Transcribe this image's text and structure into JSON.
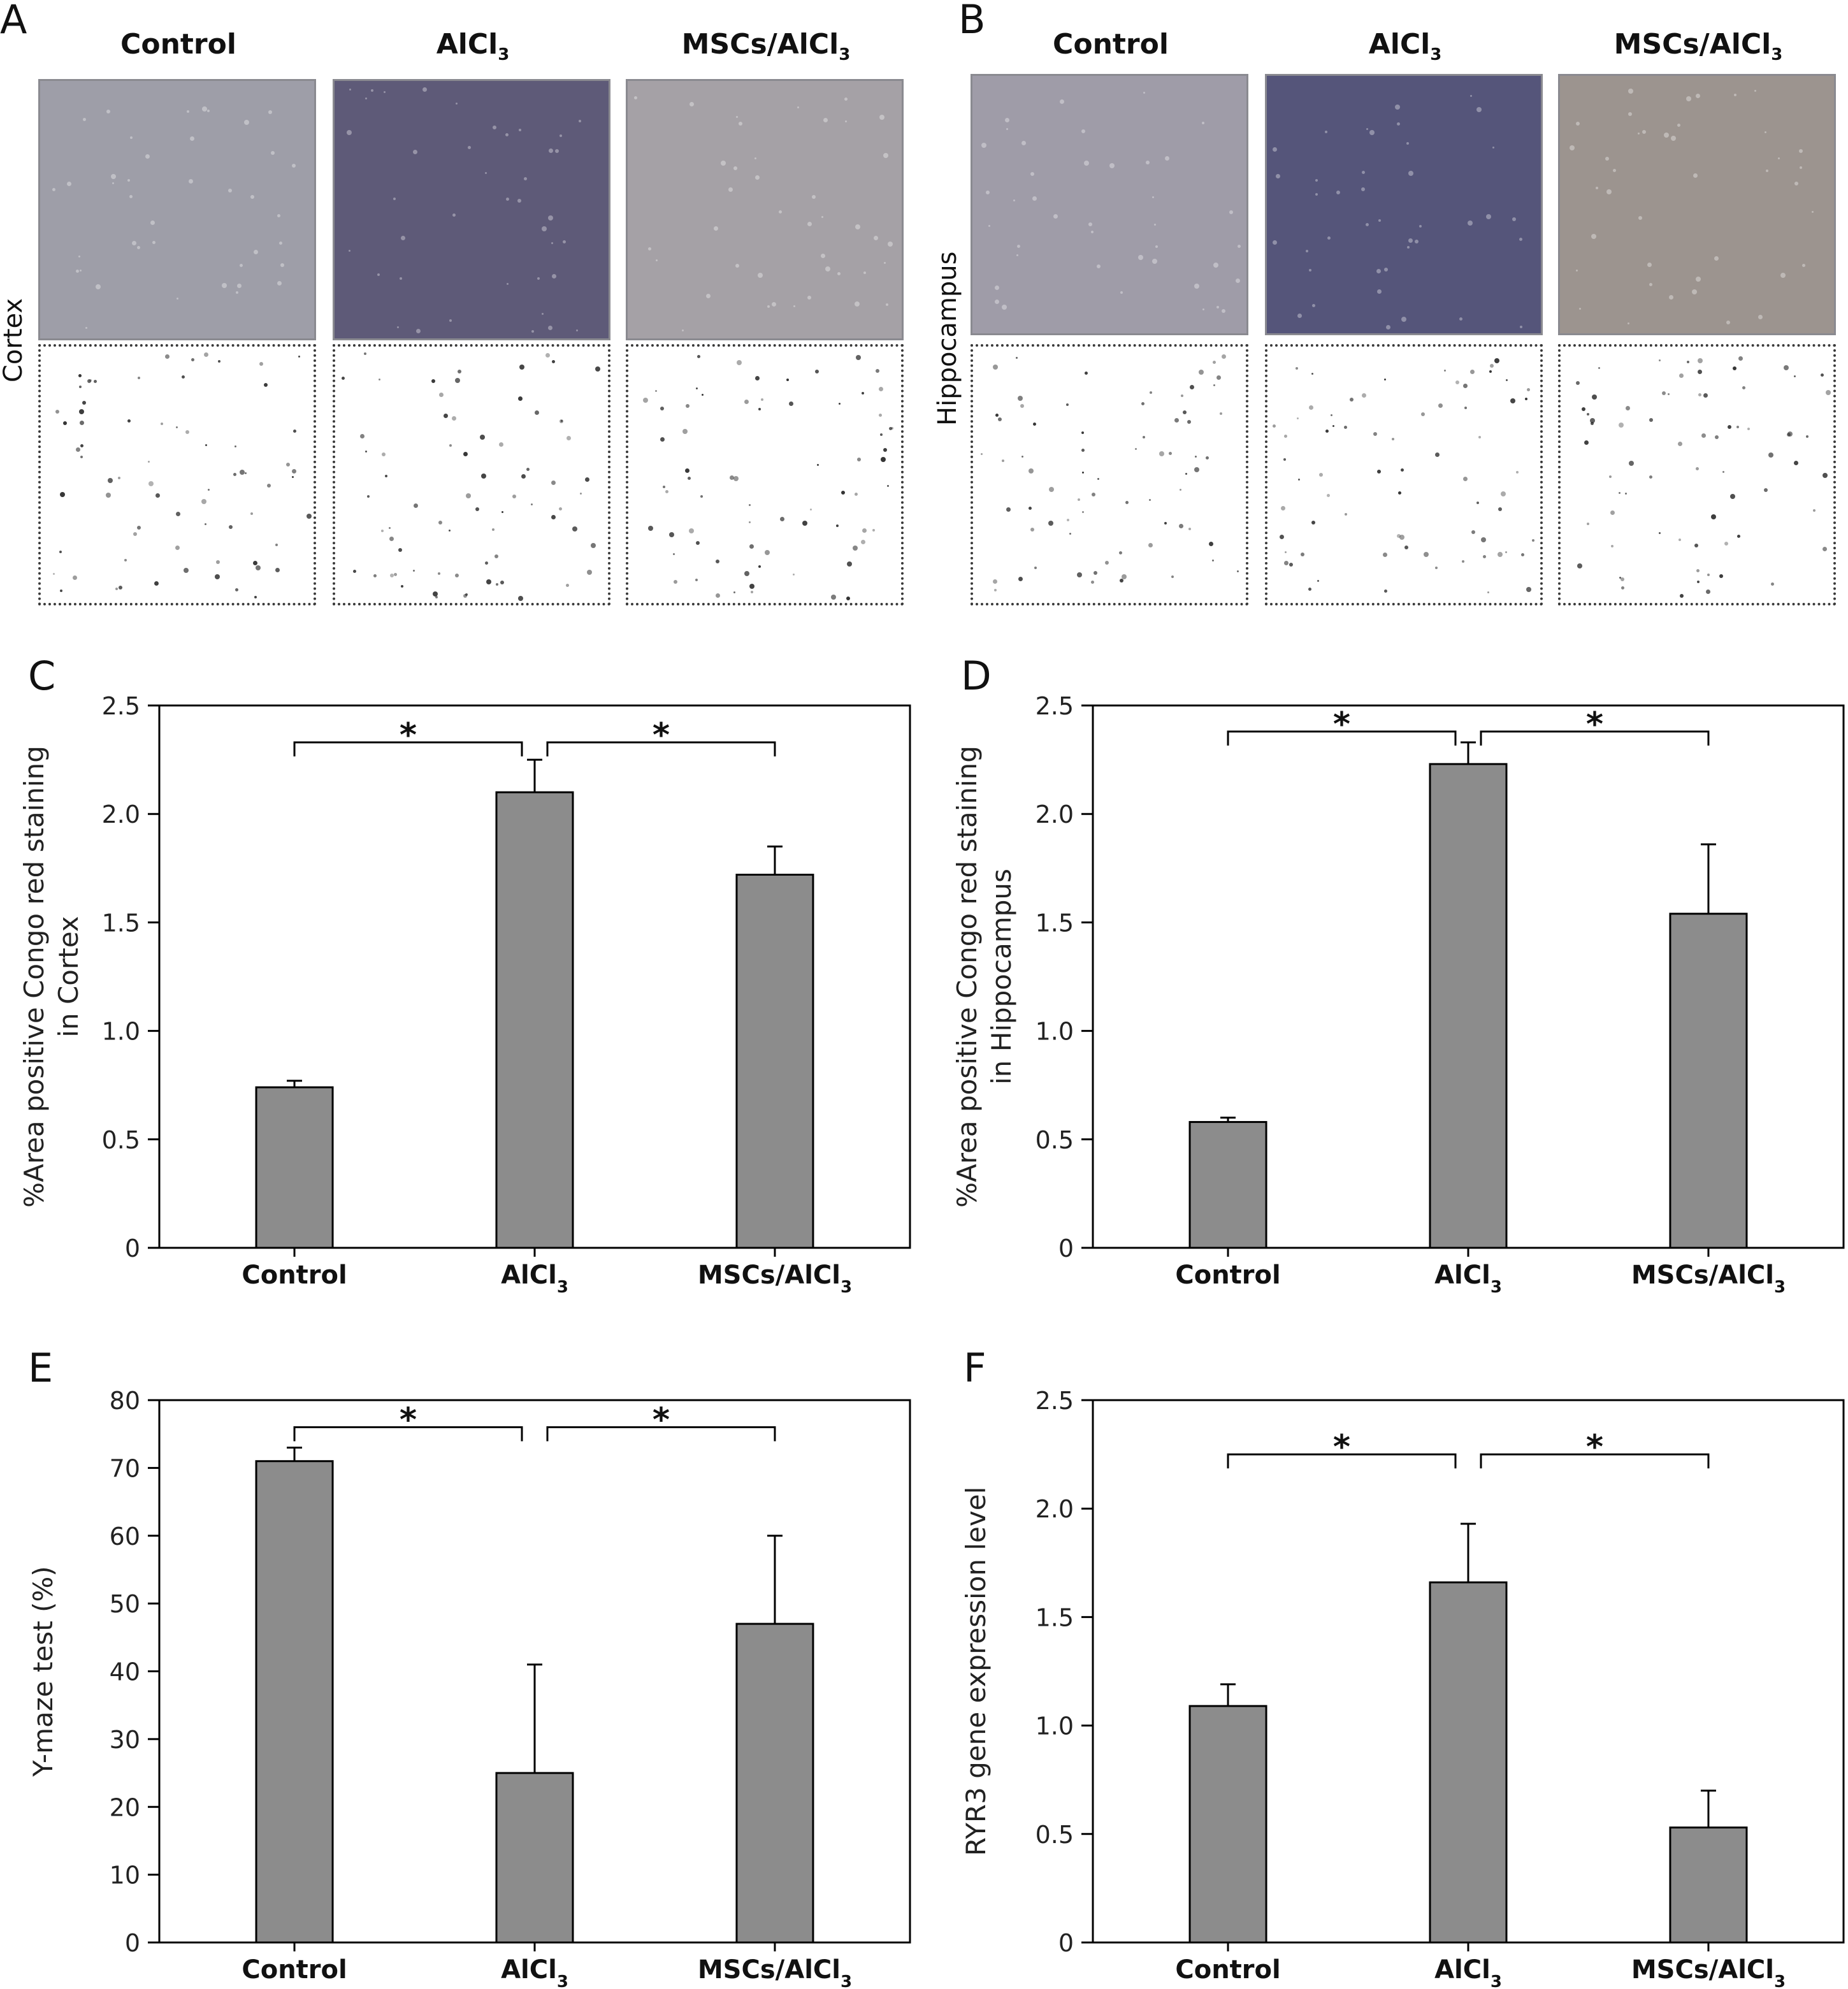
{
  "figure": {
    "panels": {
      "a": "A",
      "b": "B",
      "c": "C",
      "d": "D",
      "e": "E",
      "f": "F"
    },
    "columns": {
      "control": "Control",
      "alcl": "AlCl",
      "alcl_sub": "3",
      "mscs": "MSCs/AlCl",
      "mscs_sub": "3"
    },
    "regions": {
      "cortex": "Cortex",
      "hippocampus": "Hippocampus"
    },
    "colors": {
      "bar_fill": "#8c8c8c",
      "bar_stroke": "#000000",
      "photo_control": "#9e9ea8",
      "photo_alcl": "#5e5a78",
      "photo_mscs": "#a5a1a6",
      "photo_hippo_control": "#9f9ca8",
      "photo_hippo_alcl": "#55557a",
      "photo_hippo_mscs": "#9c948f"
    }
  },
  "chart_data": [
    {
      "panel": "C",
      "type": "bar",
      "categories": [
        "Control",
        "AlCl3",
        "MSCs/AlCl3"
      ],
      "category_labels": [
        {
          "main": "Control",
          "sub": ""
        },
        {
          "main": "AlCl",
          "sub": "3"
        },
        {
          "main": "MSCs/AlCl",
          "sub": "3"
        }
      ],
      "values": [
        0.74,
        2.1,
        1.72
      ],
      "errors": [
        0.03,
        0.15,
        0.13
      ],
      "ylabel_lines": [
        "%Area positive Congo red staining",
        "in Cortex"
      ],
      "ylim": [
        0,
        2.5
      ],
      "yticks": [
        0,
        0.5,
        1.0,
        1.5,
        2.0,
        2.5
      ],
      "ytick_labels": [
        "0",
        "0.5",
        "1.0",
        "1.5",
        "2.0",
        "2.5"
      ],
      "significance": [
        {
          "from": 0,
          "to": 1,
          "label": "*",
          "y": 2.33
        },
        {
          "from": 1,
          "to": 2,
          "label": "*",
          "y": 2.33
        }
      ]
    },
    {
      "panel": "D",
      "type": "bar",
      "categories": [
        "Control",
        "AlCl3",
        "MSCs/AlCl3"
      ],
      "category_labels": [
        {
          "main": "Control",
          "sub": ""
        },
        {
          "main": "AlCl",
          "sub": "3"
        },
        {
          "main": "MSCs/AlCl",
          "sub": "3"
        }
      ],
      "values": [
        0.58,
        2.23,
        1.54
      ],
      "errors": [
        0.02,
        0.1,
        0.32
      ],
      "ylabel_lines": [
        "%Area positive Congo red staining",
        "in Hippocampus"
      ],
      "ylim": [
        0,
        2.5
      ],
      "yticks": [
        0,
        0.5,
        1.0,
        1.5,
        2.0,
        2.5
      ],
      "ytick_labels": [
        "0",
        "0.5",
        "1.0",
        "1.5",
        "2.0",
        "2.5"
      ],
      "significance": [
        {
          "from": 0,
          "to": 1,
          "label": "*",
          "y": 2.38
        },
        {
          "from": 1,
          "to": 2,
          "label": "*",
          "y": 2.38
        }
      ]
    },
    {
      "panel": "E",
      "type": "bar",
      "categories": [
        "Control",
        "AlCl3",
        "MSCs/AlCl3"
      ],
      "category_labels": [
        {
          "main": "Control",
          "sub": ""
        },
        {
          "main": "AlCl",
          "sub": "3"
        },
        {
          "main": "MSCs/AlCl",
          "sub": "3"
        }
      ],
      "values": [
        71,
        25,
        47
      ],
      "errors": [
        2,
        16,
        13
      ],
      "ylabel_lines": [
        "Y-maze test (%)"
      ],
      "ylim": [
        0,
        80
      ],
      "yticks": [
        0,
        10,
        20,
        30,
        40,
        50,
        60,
        70,
        80
      ],
      "ytick_labels": [
        "0",
        "10",
        "20",
        "30",
        "40",
        "50",
        "60",
        "70",
        "80"
      ],
      "significance": [
        {
          "from": 0,
          "to": 1,
          "label": "*",
          "y": 76
        },
        {
          "from": 1,
          "to": 2,
          "label": "*",
          "y": 76
        }
      ]
    },
    {
      "panel": "F",
      "type": "bar",
      "categories": [
        "Control",
        "AlCl3",
        "MSCs/AlCl3"
      ],
      "category_labels": [
        {
          "main": "Control",
          "sub": ""
        },
        {
          "main": "AlCl",
          "sub": "3"
        },
        {
          "main": "MSCs/AlCl",
          "sub": "3"
        }
      ],
      "values": [
        1.09,
        1.66,
        0.53
      ],
      "errors": [
        0.1,
        0.27,
        0.17
      ],
      "ylabel_lines": [
        "RYR3 gene expression level"
      ],
      "ylim": [
        0,
        2.5
      ],
      "yticks": [
        0,
        0.5,
        1.0,
        1.5,
        2.0,
        2.5
      ],
      "ytick_labels": [
        "0",
        "0.5",
        "1.0",
        "1.5",
        "2.0",
        "2.5"
      ],
      "significance": [
        {
          "from": 0,
          "to": 1,
          "label": "*",
          "y": 2.25
        },
        {
          "from": 1,
          "to": 2,
          "label": "*",
          "y": 2.25
        }
      ]
    }
  ]
}
